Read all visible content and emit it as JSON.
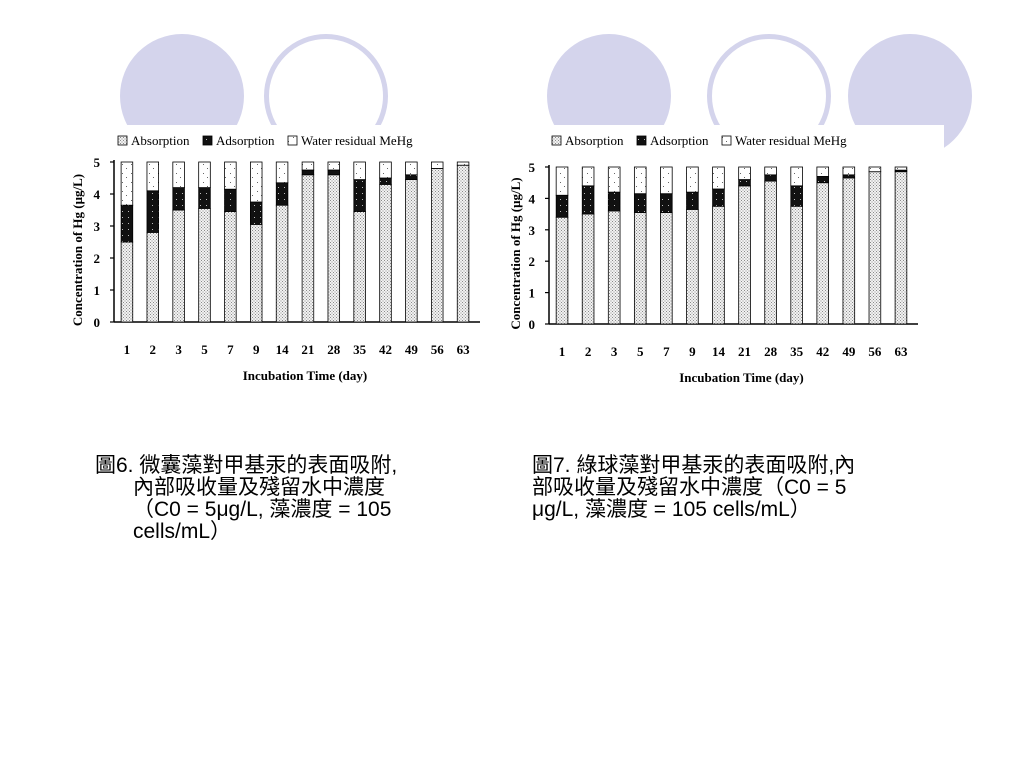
{
  "colors": {
    "decor_circle": "#d4d4ec",
    "absorption_fill": "#dcdcdc",
    "adsorption_fill": "#111111",
    "water_fill": "#ffffff"
  },
  "chart_data": [
    {
      "type": "bar",
      "stacked": true,
      "title": "",
      "xlabel": "Incubation Time (day)",
      "ylabel": "Concentration of Hg (μg/L)",
      "ylim": [
        0,
        5
      ],
      "yticks": [
        "0",
        "1",
        "2",
        "3",
        "4",
        "5"
      ],
      "categories": [
        "1",
        "2",
        "3",
        "5",
        "7",
        "9",
        "14",
        "21",
        "28",
        "35",
        "42",
        "49",
        "56",
        "63"
      ],
      "legend_position": "top",
      "series": [
        {
          "name": "Absorption",
          "values": [
            2.5,
            2.8,
            3.5,
            3.55,
            3.45,
            3.05,
            3.65,
            4.6,
            4.6,
            3.45,
            4.3,
            4.45,
            4.8,
            4.9
          ]
        },
        {
          "name": "Adsorption",
          "values": [
            1.15,
            1.3,
            0.7,
            0.65,
            0.7,
            0.7,
            0.7,
            0.15,
            0.15,
            1.0,
            0.2,
            0.15,
            0,
            0
          ]
        },
        {
          "name": "Water residual MeHg",
          "values": [
            1.35,
            0.9,
            0.8,
            0.8,
            0.85,
            1.25,
            0.65,
            0.25,
            0.25,
            0.55,
            0.5,
            0.4,
            0.2,
            0.1
          ]
        }
      ]
    },
    {
      "type": "bar",
      "stacked": true,
      "title": "",
      "xlabel": "Incubation Time (day)",
      "ylabel": "Concentration of Hg (μg/L)",
      "ylim": [
        0,
        5
      ],
      "yticks": [
        "0",
        "1",
        "2",
        "3",
        "4",
        "5"
      ],
      "categories": [
        "1",
        "2",
        "3",
        "5",
        "7",
        "9",
        "14",
        "21",
        "28",
        "35",
        "42",
        "49",
        "56",
        "63"
      ],
      "legend_position": "top",
      "series": [
        {
          "name": "Absorption",
          "values": [
            3.4,
            3.5,
            3.6,
            3.55,
            3.55,
            3.65,
            3.75,
            4.4,
            4.55,
            3.75,
            4.5,
            4.65,
            4.85,
            4.85
          ]
        },
        {
          "name": "Adsorption",
          "values": [
            0.7,
            0.9,
            0.6,
            0.6,
            0.6,
            0.55,
            0.55,
            0.2,
            0.2,
            0.65,
            0.2,
            0.1,
            0,
            0.05
          ]
        },
        {
          "name": "Water residual MeHg",
          "values": [
            0.9,
            0.6,
            0.8,
            0.85,
            0.85,
            0.8,
            0.7,
            0.4,
            0.25,
            0.6,
            0.3,
            0.25,
            0.15,
            0.1
          ]
        }
      ]
    }
  ],
  "captions": [
    {
      "lines": [
        "圖6. 微囊藻對甲基汞的表面吸附,",
        "內部吸收量及殘留水中濃度",
        "（C0 = 5μg/L, 藻濃度 = 105",
        "cells/mL）"
      ]
    },
    {
      "lines": [
        "圖7. 綠球藻對甲基汞的表面吸附,內",
        "部吸收量及殘留水中濃度（C0 = 5",
        "μg/L, 藻濃度 = 105 cells/mL）"
      ]
    }
  ]
}
